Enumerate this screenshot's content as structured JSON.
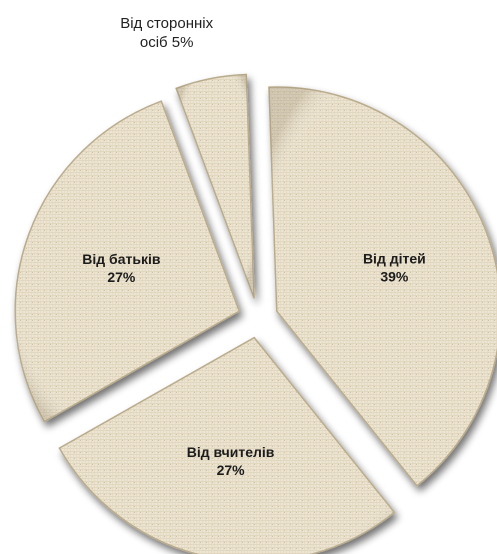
{
  "chart_data": {
    "type": "pie",
    "exploded": true,
    "slices": [
      {
        "label": "Від дітей",
        "value_label": "39%",
        "value": 39,
        "label_placement": "inside"
      },
      {
        "label": "Від вчителів",
        "value_label": "27%",
        "value": 27,
        "label_placement": "inside"
      },
      {
        "label": "Від батьків",
        "value_label": "27%",
        "value": 27,
        "label_placement": "inside"
      },
      {
        "label": "Від сторонніх осіб",
        "value_label": "5%",
        "value": 5,
        "label_placement": "outside-top",
        "label_text_lines": [
          "Від сторонніх",
          "осіб 5%"
        ]
      }
    ],
    "colors": {
      "slice_fill": "#ede5d3",
      "slice_texture": "#d8ccb0",
      "slice_edge": "#b9ab8c",
      "shadow": "#8f8877",
      "label_color": "#1c1c1c"
    }
  }
}
